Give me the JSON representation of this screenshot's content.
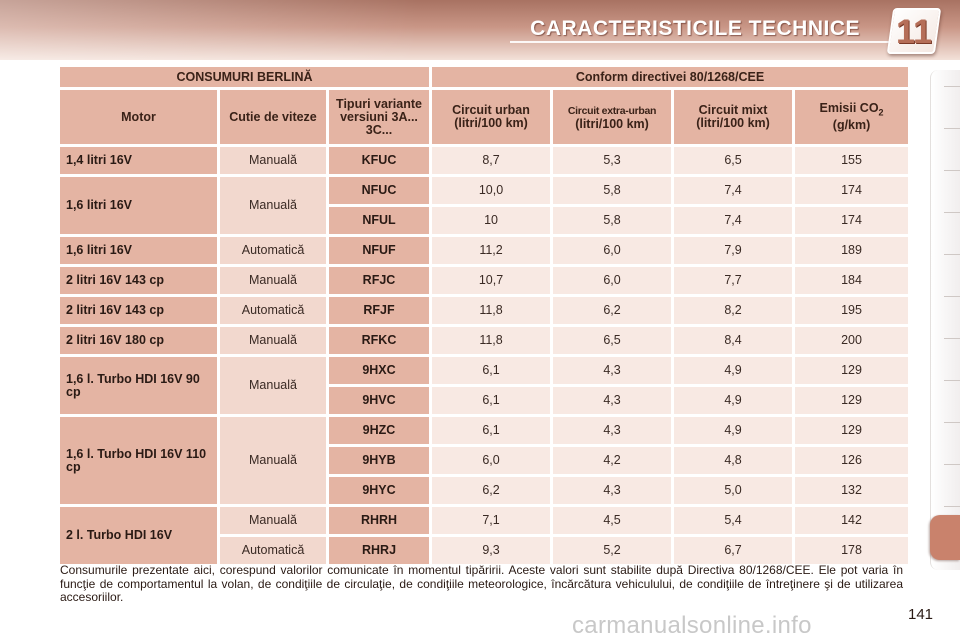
{
  "header": {
    "title": "CARACTERISTICILE TECHNICE",
    "chapter": "11"
  },
  "table": {
    "title_left": "CONSUMURI BERLINĂ",
    "title_right": "Conform directivei 80/1268/CEE",
    "columns": {
      "motor": "Motor",
      "cutie": "Cutie de viteze",
      "tipuri": "Tipuri variante versiuni 3A... 3C...",
      "urban": "Circuit urban (litri/100 km)",
      "extra_line1": "Circuit extra-urban",
      "extra_line2": "(litri/100 km)",
      "mixt": "Circuit mixt (litri/100 km)",
      "emisii_prefix": "Emisii CO",
      "emisii_sub": "2",
      "emisii_unit": "(g/km)"
    },
    "groups": [
      {
        "motor": "1,4 litri 16V",
        "rows": [
          {
            "cutie": "Manuală",
            "code": "KFUC",
            "urban": "8,7",
            "extra": "5,3",
            "mixt": "6,5",
            "co2": "155"
          }
        ]
      },
      {
        "motor": "1,6 litri 16V",
        "cutie": "Manuală",
        "rows": [
          {
            "code": "NFUC",
            "urban": "10,0",
            "extra": "5,8",
            "mixt": "7,4",
            "co2": "174"
          },
          {
            "code": "NFUL",
            "urban": "10",
            "extra": "5,8",
            "mixt": "7,4",
            "co2": "174"
          }
        ]
      },
      {
        "motor": "1,6 litri 16V",
        "rows": [
          {
            "cutie": "Automatică",
            "code": "NFUF",
            "urban": "11,2",
            "extra": "6,0",
            "mixt": "7,9",
            "co2": "189"
          }
        ]
      },
      {
        "motor": "2 litri 16V 143 cp",
        "rows": [
          {
            "cutie": "Manuală",
            "code": "RFJC",
            "urban": "10,7",
            "extra": "6,0",
            "mixt": "7,7",
            "co2": "184"
          }
        ]
      },
      {
        "motor": "2 litri 16V 143 cp",
        "rows": [
          {
            "cutie": "Automatică",
            "code": "RFJF",
            "urban": "11,8",
            "extra": "6,2",
            "mixt": "8,2",
            "co2": "195"
          }
        ]
      },
      {
        "motor": "2 litri 16V 180 cp",
        "rows": [
          {
            "cutie": "Manuală",
            "code": "RFKC",
            "urban": "11,8",
            "extra": "6,5",
            "mixt": "8,4",
            "co2": "200"
          }
        ]
      },
      {
        "motor": "1,6 l. Turbo HDI 16V 90 cp",
        "cutie": "Manuală",
        "rows": [
          {
            "code": "9HXC",
            "urban": "6,1",
            "extra": "4,3",
            "mixt": "4,9",
            "co2": "129"
          },
          {
            "code": "9HVC",
            "urban": "6,1",
            "extra": "4,3",
            "mixt": "4,9",
            "co2": "129"
          }
        ]
      },
      {
        "motor": "1,6 l. Turbo HDI 16V 110 cp",
        "cutie": "Manuală",
        "rows": [
          {
            "code": "9HZC",
            "urban": "6,1",
            "extra": "4,3",
            "mixt": "4,9",
            "co2": "129"
          },
          {
            "code": "9HYB",
            "urban": "6,0",
            "extra": "4,2",
            "mixt": "4,8",
            "co2": "126"
          },
          {
            "code": "9HYC",
            "urban": "6,2",
            "extra": "4,3",
            "mixt": "5,0",
            "co2": "132"
          }
        ]
      },
      {
        "motor": "2 l. Turbo HDI 16V",
        "rows": [
          {
            "cutie": "Manuală",
            "code": "RHRH",
            "urban": "7,1",
            "extra": "4,5",
            "mixt": "5,4",
            "co2": "142"
          },
          {
            "cutie": "Automatică",
            "code": "RHRJ",
            "urban": "9,3",
            "extra": "5,2",
            "mixt": "6,7",
            "co2": "178"
          }
        ]
      }
    ]
  },
  "footnote": "Consumurile prezentate aici, corespund valorilor comunicate în momentul tipăririi. Aceste valori sunt stabilite după Directiva 80/1268/CEE. Ele pot varia în funcţie de comportamentul la volan, de condiţiile de circulaţie, de condiţiile meteorologice, încărcătura vehiculului, de condiţiile de întreţinere şi de utilizarea accesoriilor.",
  "page_number": "141",
  "watermark": "carmanualsonline.info",
  "colors": {
    "header_dark": "#a87262",
    "cell_dark": "#e4b4a3",
    "cell_light": "#f8e9e3",
    "tab_active": "#c9826c"
  }
}
